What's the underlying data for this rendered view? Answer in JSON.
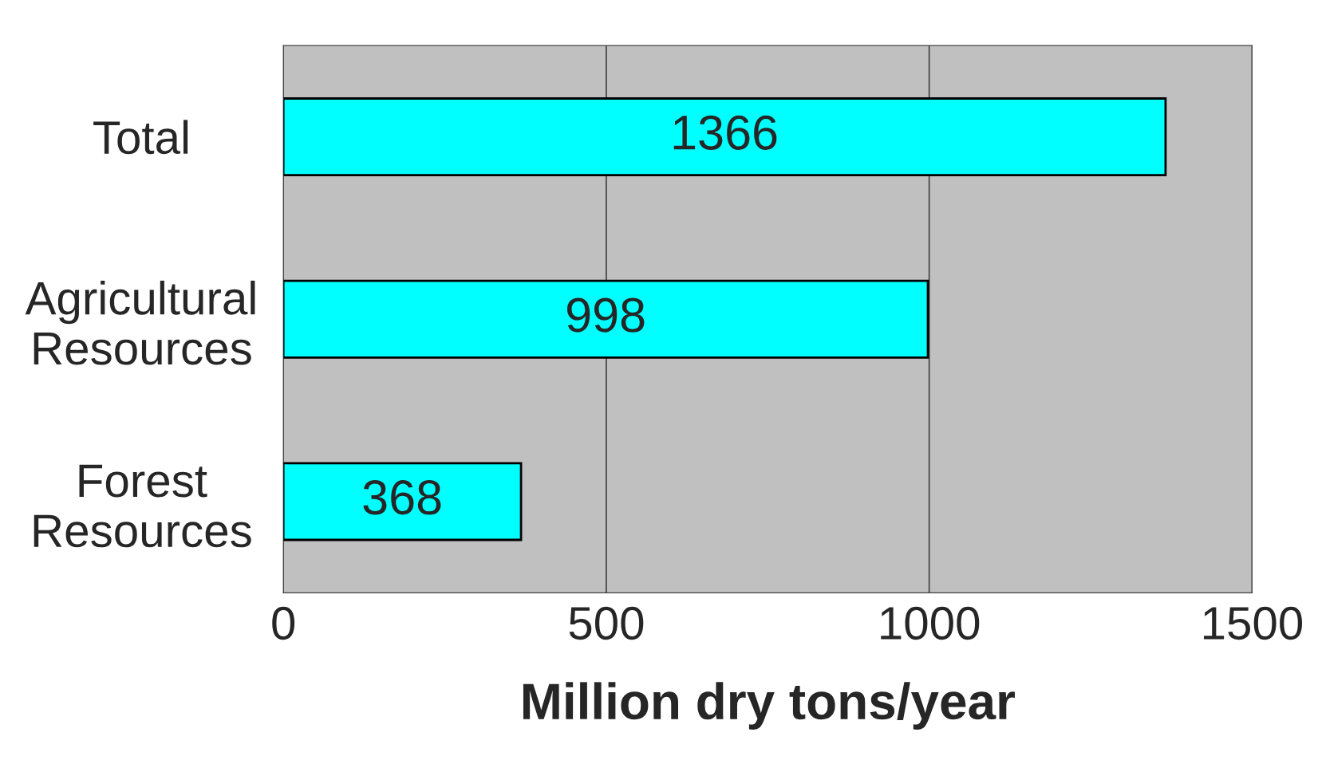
{
  "chart_data": {
    "type": "bar",
    "orientation": "horizontal",
    "categories": [
      "Total",
      "Agricultural\nResources",
      "Forest\nResources"
    ],
    "values": [
      1366,
      998,
      368
    ],
    "color": "#00ffff",
    "xlim": [
      0,
      1500
    ],
    "xticks": [
      0,
      500,
      1000,
      1500
    ],
    "xlabel": "Million dry tons/year",
    "grid": "x",
    "data_labels": true
  }
}
